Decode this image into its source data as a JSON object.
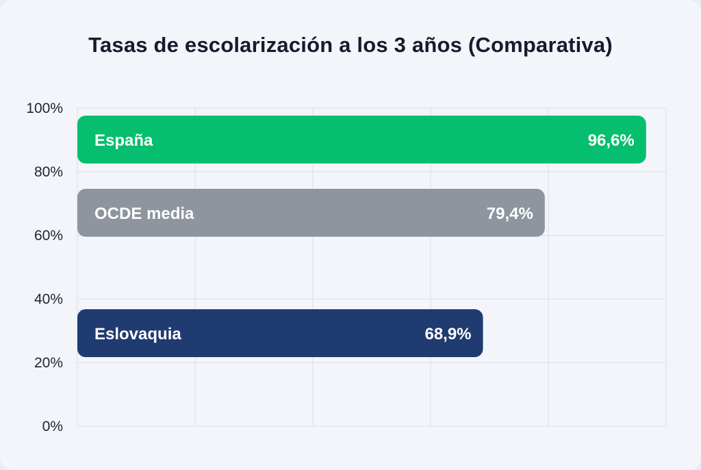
{
  "title": "Tasas de escolarización a los 3 años (Comparativa)",
  "chart_data": {
    "type": "bar",
    "orientation": "horizontal",
    "title": "Tasas de escolarización a los 3 años (Comparativa)",
    "categories": [
      "España",
      "OCDE media",
      "Eslovaquia"
    ],
    "values": [
      96.6,
      79.4,
      68.9
    ],
    "value_labels": [
      "96,6%",
      "79,4%",
      "68,9%"
    ],
    "colors": [
      "#05bf6e",
      "#8e959e",
      "#1f3b70"
    ],
    "axis": {
      "ticks": [
        "0%",
        "20%",
        "40%",
        "60%",
        "80%",
        "100%"
      ],
      "range": [
        0,
        100
      ]
    },
    "grid": true,
    "legend": "none"
  }
}
